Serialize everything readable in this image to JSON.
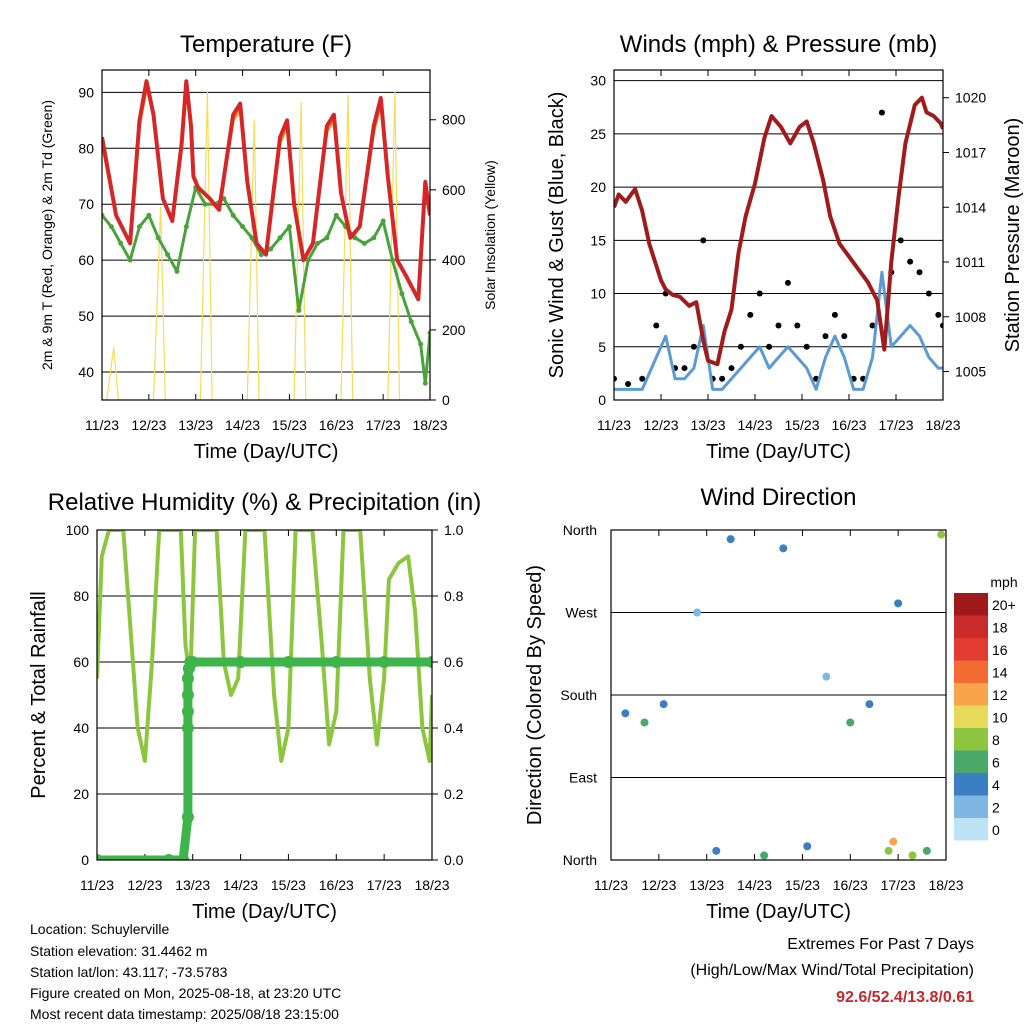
{
  "x_ticks": [
    "11/23",
    "12/23",
    "13/23",
    "14/23",
    "15/23",
    "16/23",
    "17/23",
    "18/23"
  ],
  "x_label": "Time (Day/UTC)",
  "colors": {
    "t2m": "#d62728",
    "t9m": "#f7941d",
    "td": "#4aa23a",
    "solar": "#f5dc5a",
    "wind": "#5a9bd5",
    "gust": "#000000",
    "pressure": "#a01c1c",
    "rh": "#8cc63f",
    "precip": "#3db54a",
    "extremes": "#c8282d"
  },
  "chart_data": [
    {
      "type": "line",
      "title": "Temperature (F)",
      "xlabel": "Time (Day/UTC)",
      "ylabel": "2m & 9m T (Red, Orange) & 2m Td (Green)",
      "y2label": "Solar Insolation (Yellow)",
      "ylim": [
        35,
        94
      ],
      "y2lim": [
        0,
        942
      ],
      "yticks": [
        40,
        50,
        60,
        70,
        80,
        90
      ],
      "y2ticks": [
        0,
        200,
        400,
        600,
        800
      ],
      "grid": true,
      "series": [
        {
          "name": "2m T",
          "x": [
            11.0,
            11.3,
            11.6,
            11.8,
            11.95,
            12.1,
            12.3,
            12.5,
            12.7,
            12.8,
            12.9,
            12.95,
            13.05,
            13.3,
            13.5,
            13.8,
            13.95,
            14.1,
            14.3,
            14.5,
            14.8,
            14.95,
            15.1,
            15.3,
            15.5,
            15.8,
            15.95,
            16.1,
            16.3,
            16.5,
            16.8,
            16.95,
            17.1,
            17.3,
            17.5,
            17.75,
            17.9,
            18.0
          ],
          "y": [
            82,
            68,
            63,
            85,
            92,
            86,
            71,
            67,
            81,
            92,
            84,
            75,
            73,
            71,
            69,
            86,
            88,
            74,
            63,
            61,
            82,
            85,
            70,
            60,
            63,
            84,
            86,
            72,
            64,
            66,
            84,
            89,
            75,
            60,
            57,
            53,
            74,
            68
          ]
        },
        {
          "name": "9m T",
          "x": [
            11.0,
            11.3,
            11.6,
            11.8,
            11.95,
            12.1,
            12.3,
            12.5,
            12.7,
            12.8,
            12.9,
            12.95,
            13.05,
            13.3,
            13.5,
            13.8,
            13.95,
            14.1,
            14.3,
            14.5,
            14.8,
            14.95,
            15.1,
            15.3,
            15.5,
            15.8,
            15.95,
            16.1,
            16.3,
            16.5,
            16.8,
            16.95,
            17.1,
            17.3,
            17.5,
            17.75,
            17.9,
            18.0
          ],
          "y": [
            81,
            68,
            63,
            84,
            91,
            86,
            71,
            67,
            80,
            91,
            84,
            75,
            73,
            71,
            69,
            85,
            87,
            74,
            63,
            61,
            81,
            84,
            70,
            60,
            63,
            83,
            85,
            72,
            64,
            66,
            83,
            88,
            75,
            60,
            57,
            53,
            73,
            68
          ]
        },
        {
          "name": "2m Td",
          "x": [
            11.0,
            11.2,
            11.4,
            11.6,
            11.8,
            12.0,
            12.2,
            12.4,
            12.6,
            12.8,
            13.0,
            13.2,
            13.4,
            13.6,
            13.8,
            14.0,
            14.2,
            14.4,
            14.6,
            14.8,
            15.0,
            15.2,
            15.4,
            15.6,
            15.8,
            16.0,
            16.2,
            16.4,
            16.6,
            16.8,
            17.0,
            17.2,
            17.4,
            17.6,
            17.8,
            17.9,
            18.0
          ],
          "y": [
            68,
            66,
            63,
            60,
            66,
            68,
            64,
            61,
            58,
            66,
            73,
            70,
            70,
            71,
            68,
            66,
            64,
            61,
            62,
            64,
            66,
            51,
            60,
            63,
            64,
            68,
            66,
            64,
            63,
            64,
            67,
            60,
            54,
            49,
            45,
            38,
            47
          ]
        },
        {
          "name": "Solar",
          "x": [
            11.0,
            11.1,
            11.25,
            11.35,
            11.45,
            11.55,
            11.6,
            12.0,
            12.1,
            12.25,
            12.35,
            12.45,
            12.55,
            12.6,
            13.0,
            13.1,
            13.25,
            13.35,
            13.45,
            13.55,
            13.6,
            14.0,
            14.1,
            14.25,
            14.35,
            14.45,
            14.55,
            14.6,
            15.0,
            15.1,
            15.25,
            15.35,
            15.45,
            15.55,
            15.6,
            16.0,
            16.1,
            16.25,
            16.35,
            16.45,
            16.55,
            16.6,
            17.0,
            17.1,
            17.25,
            17.35,
            17.45,
            17.55,
            17.6,
            18.0
          ],
          "y": [
            0,
            0,
            150,
            0,
            0,
            0,
            0,
            0,
            0,
            550,
            0,
            0,
            0,
            0,
            0,
            0,
            880,
            0,
            0,
            0,
            0,
            0,
            0,
            800,
            0,
            0,
            0,
            0,
            0,
            0,
            850,
            0,
            0,
            0,
            0,
            0,
            0,
            870,
            0,
            0,
            0,
            0,
            0,
            0,
            880,
            0,
            0,
            0,
            0,
            0
          ]
        }
      ]
    },
    {
      "type": "line",
      "title": "Winds (mph) & Pressure (mb)",
      "xlabel": "Time (Day/UTC)",
      "ylabel": "Sonic Wind & Gust (Blue, Black)",
      "y2label": "Station Pressure (Maroon)",
      "ylim": [
        0,
        31
      ],
      "y2lim": [
        1003.44,
        1021.52
      ],
      "yticks": [
        0,
        5,
        10,
        15,
        20,
        25,
        30
      ],
      "y2ticks": [
        1005,
        1008,
        1011,
        1014,
        1017,
        1020
      ],
      "grid": true,
      "series": [
        {
          "name": "Wind",
          "x": [
            11.0,
            11.3,
            11.6,
            11.9,
            12.1,
            12.3,
            12.5,
            12.7,
            12.9,
            13.1,
            13.3,
            13.5,
            13.7,
            13.9,
            14.1,
            14.3,
            14.5,
            14.7,
            14.9,
            15.1,
            15.3,
            15.5,
            15.7,
            15.9,
            16.1,
            16.3,
            16.5,
            16.7,
            16.9,
            17.1,
            17.3,
            17.5,
            17.7,
            17.9,
            18.0
          ],
          "y": [
            1,
            1,
            1,
            4,
            6,
            2,
            2,
            3,
            7,
            1,
            1,
            2,
            3,
            4,
            5,
            3,
            4,
            5,
            4,
            3,
            1,
            4,
            6,
            4,
            1,
            1,
            4,
            12,
            5,
            6,
            7,
            6,
            4,
            3,
            3
          ]
        },
        {
          "name": "Gust",
          "x": [
            11.0,
            11.3,
            11.6,
            11.9,
            12.1,
            12.3,
            12.5,
            12.7,
            12.9,
            13.1,
            13.3,
            13.5,
            13.7,
            13.9,
            14.1,
            14.3,
            14.5,
            14.7,
            14.9,
            15.1,
            15.3,
            15.5,
            15.7,
            15.9,
            16.1,
            16.3,
            16.5,
            16.7,
            16.9,
            17.1,
            17.3,
            17.5,
            17.7,
            17.9,
            18.0
          ],
          "y": [
            2,
            1.5,
            2,
            7,
            10,
            3,
            3,
            5,
            15,
            2,
            2,
            3,
            5,
            8,
            10,
            5,
            7,
            11,
            7,
            5,
            2,
            6,
            8,
            6,
            2,
            2,
            7,
            27,
            12,
            15,
            13,
            12,
            10,
            8,
            7
          ]
        },
        {
          "name": "Pressure",
          "x": [
            11.0,
            11.1,
            11.25,
            11.45,
            11.6,
            11.75,
            11.9,
            12.0,
            12.1,
            12.25,
            12.4,
            12.6,
            12.75,
            12.9,
            13.0,
            13.2,
            13.35,
            13.5,
            13.65,
            13.8,
            14.0,
            14.2,
            14.35,
            14.55,
            14.75,
            14.95,
            15.1,
            15.25,
            15.45,
            15.6,
            15.8,
            16.0,
            16.2,
            16.4,
            16.6,
            16.75,
            16.9,
            17.05,
            17.2,
            17.4,
            17.55,
            17.65,
            17.8,
            17.95,
            18.0
          ],
          "y": [
            1014.0,
            1014.7,
            1014.3,
            1015.0,
            1013.8,
            1012.0,
            1010.8,
            1010.0,
            1009.5,
            1009.2,
            1009.1,
            1008.6,
            1008.8,
            1006.7,
            1005.6,
            1005.4,
            1007.2,
            1008.4,
            1011.5,
            1013.5,
            1015.3,
            1017.8,
            1019.0,
            1018.4,
            1017.5,
            1018.4,
            1018.7,
            1017.5,
            1015.5,
            1013.5,
            1012.0,
            1011.3,
            1010.6,
            1009.9,
            1008.9,
            1006.2,
            1011.0,
            1014.5,
            1017.5,
            1019.6,
            1020.0,
            1019.2,
            1019.0,
            1018.6,
            1018.3
          ]
        }
      ]
    },
    {
      "type": "line",
      "title": "Relative Humidity (%) & Precipitation (in)",
      "xlabel": "Time (Day/UTC)",
      "ylabel": "Percent & Total Rainfall",
      "ylim": [
        0,
        100
      ],
      "y2lim": [
        0,
        1.0
      ],
      "yticks": [
        0,
        20,
        40,
        60,
        80,
        100
      ],
      "y2ticks": [
        0.0,
        0.2,
        0.4,
        0.6,
        0.8,
        1.0
      ],
      "grid": true,
      "series": [
        {
          "name": "RH",
          "x": [
            11.0,
            11.1,
            11.25,
            11.4,
            11.55,
            11.7,
            11.85,
            12.0,
            12.15,
            12.3,
            12.45,
            12.6,
            12.75,
            12.85,
            12.95,
            13.05,
            13.2,
            13.35,
            13.5,
            13.65,
            13.8,
            13.95,
            14.1,
            14.3,
            14.5,
            14.7,
            14.85,
            15.0,
            15.15,
            15.3,
            15.5,
            15.7,
            15.85,
            16.0,
            16.15,
            16.3,
            16.5,
            16.7,
            16.85,
            17.0,
            17.1,
            17.3,
            17.5,
            17.65,
            17.8,
            17.95,
            18.0
          ],
          "y": [
            55,
            92,
            100,
            100,
            100,
            70,
            40,
            30,
            60,
            100,
            100,
            100,
            100,
            65,
            55,
            100,
            100,
            100,
            100,
            60,
            50,
            55,
            100,
            100,
            100,
            50,
            30,
            40,
            100,
            100,
            100,
            65,
            35,
            45,
            100,
            100,
            100,
            55,
            35,
            55,
            85,
            90,
            92,
            75,
            40,
            30,
            50
          ]
        },
        {
          "name": "Precipitation",
          "x": [
            11.0,
            12.5,
            12.8,
            12.9,
            12.9,
            12.9,
            12.9,
            12.9,
            12.92,
            12.95,
            13.0,
            14.0,
            15.0,
            16.0,
            17.0,
            18.0
          ],
          "y": [
            0.0,
            0.0,
            0.0,
            0.13,
            0.4,
            0.45,
            0.5,
            0.55,
            0.58,
            0.6,
            0.6,
            0.6,
            0.6,
            0.6,
            0.6,
            0.6
          ]
        }
      ]
    },
    {
      "type": "scatter",
      "title": "Wind Direction",
      "xlabel": "Time (Day/UTC)",
      "ylabel": "Direction (Colored By Speed)",
      "yticks": [
        "North",
        "East",
        "South",
        "West",
        "North"
      ],
      "ylim": [
        0,
        360
      ],
      "colorbar": {
        "title": "mph",
        "labels": [
          "20+",
          "18",
          "16",
          "14",
          "12",
          "10",
          "8",
          "6",
          "4",
          "2",
          "0"
        ],
        "colors": [
          "#9e1a1a",
          "#c92a2a",
          "#e03c31",
          "#f26b32",
          "#f7a44b",
          "#e7d95a",
          "#8cc63f",
          "#4aa86b",
          "#3a7fc1",
          "#7fb7e3",
          "#bde3f5"
        ]
      },
      "points_approx": [
        {
          "x": 11.3,
          "y": 160,
          "speed": 3
        },
        {
          "x": 11.7,
          "y": 150,
          "speed": 5
        },
        {
          "x": 12.1,
          "y": 170,
          "speed": 4
        },
        {
          "x": 12.8,
          "y": 270,
          "speed": 1
        },
        {
          "x": 13.2,
          "y": 10,
          "speed": 4
        },
        {
          "x": 13.5,
          "y": 350,
          "speed": 3
        },
        {
          "x": 14.2,
          "y": 5,
          "speed": 5
        },
        {
          "x": 14.6,
          "y": 340,
          "speed": 3
        },
        {
          "x": 15.1,
          "y": 15,
          "speed": 4
        },
        {
          "x": 15.5,
          "y": 200,
          "speed": 2
        },
        {
          "x": 16.0,
          "y": 150,
          "speed": 5
        },
        {
          "x": 16.4,
          "y": 170,
          "speed": 4
        },
        {
          "x": 16.8,
          "y": 10,
          "speed": 8
        },
        {
          "x": 16.9,
          "y": 20,
          "speed": 12
        },
        {
          "x": 17.0,
          "y": 280,
          "speed": 4
        },
        {
          "x": 17.3,
          "y": 5,
          "speed": 7
        },
        {
          "x": 17.6,
          "y": 10,
          "speed": 6
        },
        {
          "x": 17.9,
          "y": 355,
          "speed": 8
        }
      ]
    }
  ],
  "info": {
    "location": "Location: Schuylerville",
    "elevation": "Station elevation: 31.4462 m",
    "latlon": "Station lat/lon: 43.117; -73.5783",
    "created": "Figure created on Mon, 2025-08-18, at 23:20 UTC",
    "recent": "Most recent data timestamp: 2025/08/18 23:15:00"
  },
  "extremes": {
    "line1": "Extremes For Past 7 Days",
    "line2": "(High/Low/Max Wind/Total Precipitation)",
    "values": "92.6/52.4/13.8/0.61"
  }
}
